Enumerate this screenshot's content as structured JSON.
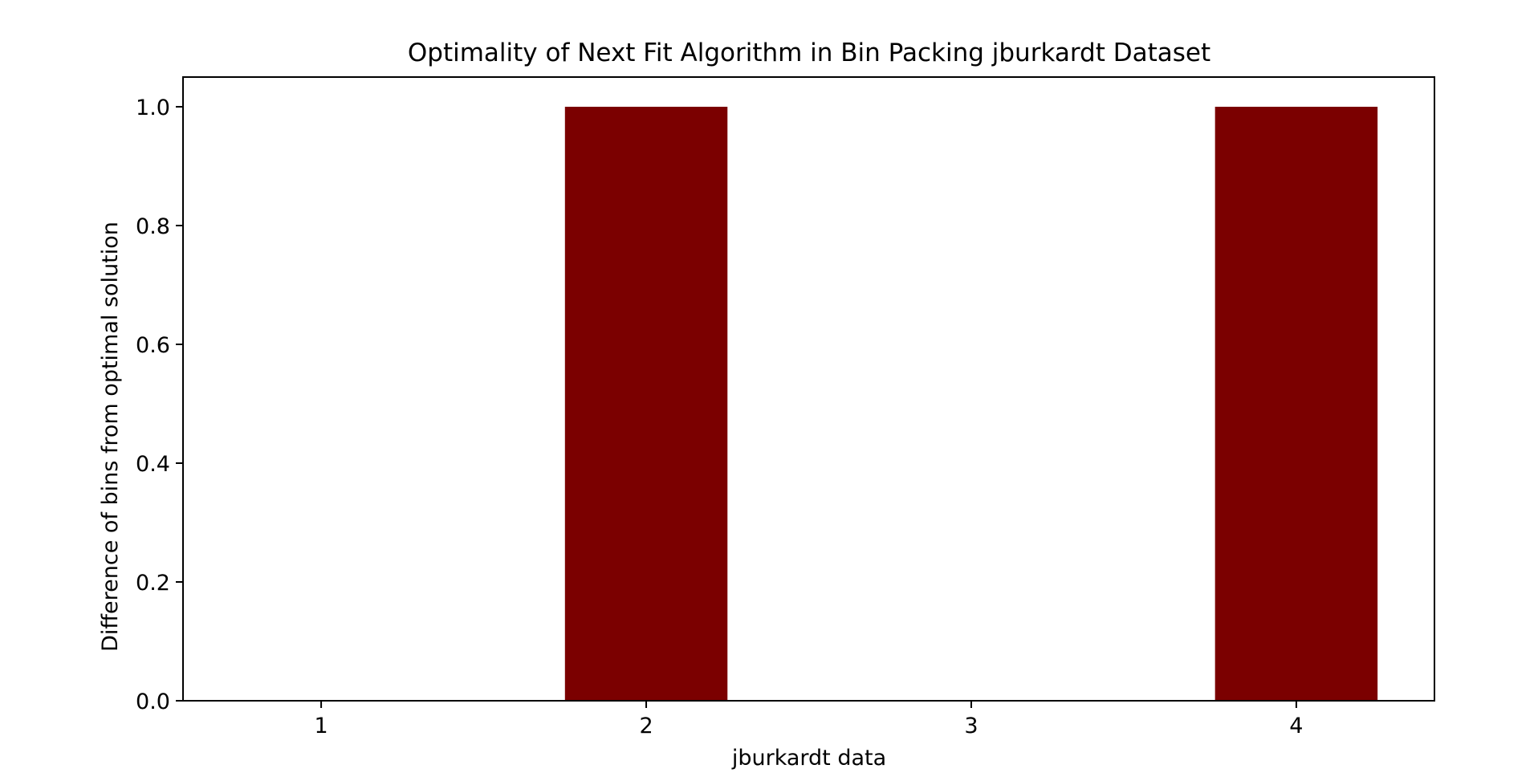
{
  "chart_data": {
    "type": "bar",
    "title": "Optimality of Next Fit Algorithm in Bin Packing jburkardt Dataset",
    "xlabel": "jburkardt data",
    "ylabel": "Difference of bins from optimal solution",
    "categories": [
      "1",
      "2",
      "3",
      "4"
    ],
    "values": [
      0,
      1,
      0,
      1
    ],
    "ylim": [
      0,
      1.05
    ],
    "yticks": [
      "0.0",
      "0.2",
      "0.4",
      "0.6",
      "0.8",
      "1.0"
    ],
    "grid": false,
    "legend": "none",
    "bar_color": "#7b0000"
  }
}
